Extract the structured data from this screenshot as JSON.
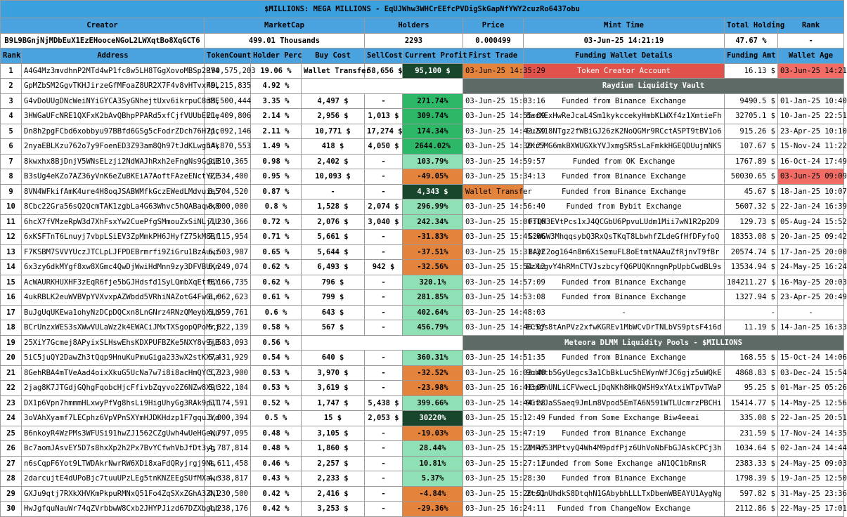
{
  "title": "$MILLIONS: MEGA MILLIONS - EqUJWhw3WHCrEEfcPVDigSkGapNfYWY2cuzRo6437obu",
  "summary_headers": [
    "Creator",
    "MarketCap",
    "Holders",
    "Price",
    "Mint Time",
    "Total Holding",
    "Rank"
  ],
  "summary_values": {
    "creator": "B9L9BGnjNjMDbEuX1EzEHooceNGoL2LWXqtBo8XqGCT6",
    "marketcap": "499.01 Thousands",
    "holders": "2293",
    "price": "0.000499",
    "mint_time": "03-Jun-25 14:21:19",
    "total_holding": "47.67 %",
    "rank": "-"
  },
  "columns": [
    "Rank",
    "Address",
    "TokenCount",
    "Holder Perc",
    "Buy Cost",
    "SellCost",
    "Current Profit",
    "First Trade",
    "Funding Wallet Details",
    "Funding Amt",
    "Wallet Age"
  ],
  "rows": [
    {
      "rank": "1",
      "addr": "A4G4Mz3mvdhnP2MTd4wP1fc8w5LH8TGgXovoMBSp2PY4",
      "tc": "190,575,203",
      "hp": "19.06 %",
      "buy": "Wallet Transfer",
      "sell": "58,656 $",
      "profit": "95,100 $",
      "pc": "dg",
      "ft": "03-Jun-25 14:35:29",
      "ftc": "or",
      "fund": "Token Creator Account",
      "fc": "red",
      "amt": "16.13 $",
      "age": "03-Jun-25 14:21",
      "agec": "lred"
    },
    {
      "rank": "2",
      "addr": "GpMZbSM2GgvTKHJirzeGfMFoaZ8UR2X7F4v8vHTvxFbL",
      "tc": "49,215,835",
      "hp": "4.92 %",
      "span": "Raydium Liquidity Vault"
    },
    {
      "rank": "3",
      "addr": "G4vDoUUgDNcWeiNYiGYCA3SyGNhejtUxv6ikrpuC8nME",
      "tc": "33,500,444",
      "hp": "3.35 %",
      "buy": "4,497 $",
      "sell": "-",
      "profit": "271.74%",
      "pc": "mg",
      "ft": "03-Jun-25 15:03:16",
      "ftc": "",
      "fund": "Funded from Binance Exchange",
      "fc": "",
      "amt": "9490.5 $",
      "age": "01-Jan-25 10:40",
      "agec": ""
    },
    {
      "rank": "4",
      "addr": "3HWGaUFcNRE1QXFxK2bAvQBhpPPARd5xfCjfVUUbEELe",
      "tc": "21,409,806",
      "hp": "2.14 %",
      "buy": "2,956 $",
      "sell": "1,013 $",
      "profit": "309.74%",
      "pc": "mg",
      "ft": "03-Jun-25 14:55:09",
      "ftc": "",
      "fund": "8acXExHwReJcaL4Sm1kykccekyHmbKLWXf4z1XmtieFh",
      "fc": "",
      "amt": "32705.1 $",
      "age": "10-Jan-25 22:51",
      "agec": ""
    },
    {
      "rank": "5",
      "addr": "Dn8h2pgFCbd6xobbyu97BBfd6GSg5cFodrZDch76H7pc",
      "tc": "21,092,146",
      "hp": "2.11 %",
      "buy": "10,771 $",
      "sell": "17,274 $",
      "profit": "174.34%",
      "pc": "mg",
      "ft": "03-Jun-25 14:42:59",
      "ftc": "",
      "fund": "Fu2X18NTgz2fWBiGJ26zK2NoQGMr9RCctASPT9tBV1o6",
      "fc": "",
      "amt": "915.26 $",
      "age": "23-Apr-25 10:10",
      "agec": ""
    },
    {
      "rank": "6",
      "addr": "2nyaEBLKzu762o7y9FoenED3Z93am8Qh97tJdKLwgbAk",
      "tc": "14,870,553",
      "hp": "1.49 %",
      "buy": "418 $",
      "sell": "4,050 $",
      "profit": "2644.02%",
      "pc": "mg",
      "ft": "03-Jun-25 14:30:27",
      "ftc": "",
      "fund": "2Kr5MG6mkBXWUGXkYVJxmgSR5sLaFmkkHGEQDUujmNKS",
      "fc": "",
      "amt": "107.67 $",
      "age": "15-Nov-24 11:22",
      "agec": ""
    },
    {
      "rank": "7",
      "addr": "8kwxhx8BjDnjV5WNsELzji2NdWAJhRxh2eFngNs9GgdE",
      "tc": "9,810,365",
      "hp": "0.98 %",
      "buy": "2,402 $",
      "sell": "-",
      "profit": "103.79%",
      "pc": "lg",
      "ft": "03-Jun-25 14:59:57",
      "ftc": "",
      "fund": "Funded from OK Exchange",
      "fc": "",
      "amt": "1767.89 $",
      "age": "16-Oct-24 17:49",
      "agec": ""
    },
    {
      "rank": "8",
      "addr": "B3sUg4eKZo7AZ36yVnK6eZuBKEiA7AoftFAzeENctYZE",
      "tc": "9,534,400",
      "hp": "0.95 %",
      "buy": "10,093 $",
      "sell": "-",
      "profit": "-49.05%",
      "pc": "or",
      "ft": "03-Jun-25 15:34:13",
      "ftc": "",
      "fund": "Funded from Binance Exchange",
      "fc": "",
      "amt": "50030.65 $",
      "age": "03-Jun-25 09:09",
      "agec": "lred"
    },
    {
      "rank": "9",
      "addr": "8VN4WFkifAmK4ure4H8oqJSABWMfkGczEWedLMdvuie5",
      "tc": "8,704,520",
      "hp": "0.87 %",
      "buy": "-",
      "sell": "-",
      "profit": "4,343 $",
      "pc": "dg",
      "ft": "Wallet Transfer",
      "ftc": "or",
      "fund": "Funded from Binance Exchange",
      "fc": "",
      "amt": "45.67 $",
      "age": "18-Jan-25 10:07",
      "agec": ""
    },
    {
      "rank": "10",
      "addr": "8Cbc22Gra56sQ2QcmTAK1zgbLa4G63Whvc5hQABaqwx8",
      "tc": "8,000,000",
      "hp": "0.8 %",
      "buy": "1,528 $",
      "sell": "2,074 $",
      "profit": "296.99%",
      "pc": "lg",
      "ft": "03-Jun-25 14:56:40",
      "ftc": "",
      "fund": "Funded from Bybit Exchange",
      "fc": "",
      "amt": "5607.32 $",
      "age": "22-Jan-24 16:39",
      "agec": ""
    },
    {
      "rank": "11",
      "addr": "6hcX7fVMzeRpW3d7XhFsxYw2CuePfgSMmouZxSiNLj1U",
      "tc": "7,230,366",
      "hp": "0.72 %",
      "buy": "2,076 $",
      "sell": "3,040 $",
      "profit": "242.34%",
      "pc": "lg",
      "ft": "03-Jun-25 15:00:16",
      "ftc": "",
      "fund": "FTQM3EVtPcs1xJ4QCGbU6PpvuLUdm1Mii7wN1R2p2D9",
      "fc": "",
      "amt": "129.73 $",
      "age": "05-Aug-24 15:52",
      "agec": ""
    },
    {
      "rank": "12",
      "addr": "6xKSFTnT6Lnuyj7vbpLSiEV3ZpMmkPH6JHyfZ75kM8Bf",
      "tc": "7,115,954",
      "hp": "0.71 %",
      "buy": "5,661 $",
      "sell": "-",
      "profit": "-31.83%",
      "pc": "or",
      "ft": "03-Jun-25 15:45:06",
      "ftc": "",
      "fund": "G2WGW3MhqqsybQ3RxQsTKqT8LbwhfZLdeGfHfDFyfoQ",
      "fc": "",
      "amt": "18353.08 $",
      "age": "20-Jan-25 09:42",
      "agec": ""
    },
    {
      "rank": "13",
      "addr": "F7KSBM7SVVYUczJTCLpLJFPDEBrmrfi9ZiGru1BzAuwi",
      "tc": "6,503,987",
      "hp": "0.65 %",
      "buy": "5,644 $",
      "sell": "-",
      "profit": "-37.51%",
      "pc": "or",
      "ft": "03-Jun-25 15:31:22",
      "ftc": "",
      "fund": "BAyC2og164n8m6XiSemuFL8oEtmtNAAuZfRjnvT9fBr",
      "fc": "",
      "amt": "20574.74 $",
      "age": "17-Jan-25 20:00",
      "agec": ""
    },
    {
      "rank": "14",
      "addr": "6x3zy6dkMYgf8xw8XGmc4QwDjWwiHdMnn9zy3DFVBUXn",
      "tc": "6,249,074",
      "hp": "0.62 %",
      "buy": "6,493 $",
      "sell": "942 $",
      "profit": "-32.56%",
      "pc": "or",
      "ft": "03-Jun-25 15:54:12",
      "ftc": "",
      "fund": "EzXrgvY4hRMnCTVJszbcyfQ6PUQKnngnPpUpbCwdBL9s",
      "fc": "",
      "amt": "13534.94 $",
      "age": "24-May-25 16:24",
      "agec": ""
    },
    {
      "rank": "15",
      "addr": "AcWAURKHUXHF3zEqR6fje5bGJHdsfd1SyLQmbXqEtf8Y",
      "tc": "6,166,735",
      "hp": "0.62 %",
      "buy": "796 $",
      "sell": "-",
      "profit": "320.1%",
      "pc": "lg",
      "ft": "03-Jun-25 14:57:09",
      "ftc": "",
      "fund": "Funded from Binance Exchange",
      "fc": "",
      "amt": "104211.27 $",
      "age": "16-May-25 20:03",
      "agec": ""
    },
    {
      "rank": "16",
      "addr": "4ukRBLK2euWVBVpYVXvxpAZWbdd5VRhiNAZotG4FwGLr",
      "tc": "6,062,623",
      "hp": "0.61 %",
      "buy": "799 $",
      "sell": "-",
      "profit": "281.85%",
      "pc": "lg",
      "ft": "03-Jun-25 14:53:08",
      "ftc": "",
      "fund": "Funded from Binance Exchange",
      "fc": "",
      "amt": "1327.94 $",
      "age": "23-Apr-25 20:49",
      "agec": ""
    },
    {
      "rank": "17",
      "addr": "BuJgUqUKEwa1ohyNzDCpDQCxn8LnGNrz4RNzQMeybXib",
      "tc": "5,959,761",
      "hp": "0.6 %",
      "buy": "643 $",
      "sell": "-",
      "profit": "402.64%",
      "pc": "lg",
      "ft": "03-Jun-25 14:48:03",
      "ftc": "",
      "fund": "-",
      "fc": "",
      "amt": "-",
      "age": "-",
      "agec": ""
    },
    {
      "rank": "18",
      "addr": "BCrUnzxWES3sXWwVULaWz2k4EWACiJMxTXSgopQPoMrj",
      "tc": "5,822,139",
      "hp": "0.58 %",
      "buy": "567 $",
      "sell": "-",
      "profit": "456.79%",
      "pc": "lg",
      "ft": "03-Jun-25 14:46:07",
      "ftc": "",
      "fund": "EC5gs8tAnPVz2xfwKGREv1MbWCvDrTNLbVS9ptsF4i6d",
      "fc": "",
      "amt": "11.19 $",
      "age": "14-Jan-25 16:33",
      "agec": ""
    },
    {
      "rank": "19",
      "addr": "25XiY7Gcmej8APyixSLHswEhsKDXPUFBZKe5NXY8v9jB",
      "tc": "5,583,093",
      "hp": "0.56 %",
      "span": "Meteora DLMM Liquidity Pools - $MILLIONS"
    },
    {
      "rank": "20",
      "addr": "5iC5juQY2DawZh3tQqp9HnuKuPmuGiga233wX2stKX7a",
      "tc": "5,431,929",
      "hp": "0.54 %",
      "buy": "640 $",
      "sell": "-",
      "profit": "360.31%",
      "pc": "lg",
      "ft": "03-Jun-25 14:51:35",
      "ftc": "",
      "fund": "Funded from Binance Exchange",
      "fc": "",
      "amt": "168.55 $",
      "age": "15-Oct-24 14:06",
      "agec": ""
    },
    {
      "rank": "21",
      "addr": "8GehRBA4mTVeAad4oixXkuG5UcNa7w7i8i8acHmQYCC7",
      "tc": "5,323,900",
      "hp": "0.53 %",
      "buy": "3,970 $",
      "sell": "-",
      "profit": "-32.52%",
      "pc": "or",
      "ft": "03-Jun-25 16:03:48",
      "ftc": "",
      "fund": "9obNtb5GyUegcs3a1CbBkLuc5hEWynWfJC6gjz5uWQkE",
      "fc": "",
      "amt": "4868.83 $",
      "age": "03-Dec-24 15:54",
      "agec": ""
    },
    {
      "rank": "22",
      "addr": "2jag8K7JTGdjGQhgFqobcHjcFfivbZqyvo2Z6NZw8X9t",
      "tc": "5,322,104",
      "hp": "0.53 %",
      "buy": "3,619 $",
      "sell": "-",
      "profit": "-23.98%",
      "pc": "or",
      "ft": "03-Jun-25 16:43:05",
      "ftc": "",
      "fund": "H3pPhUNLiCFVwecLjDqNKh8HkQWSH9xYAtxiWTpvTWaP",
      "fc": "",
      "amt": "95.25 $",
      "age": "01-Mar-25 05:26",
      "agec": ""
    },
    {
      "rank": "23",
      "addr": "DX1p6Vpn7hmmmHLxwyPfVg8hsLi9HigUhyGg3RAk9pJT",
      "tc": "5,174,591",
      "hp": "0.52 %",
      "buy": "1,747 $",
      "sell": "5,438 $",
      "profit": "399.66%",
      "pc": "lg",
      "ft": "03-Jun-25 14:44:28",
      "ftc": "",
      "fund": "9GfvJaSSaeq9JmLm8Vpod5EmTA6N591WTLUcmrzPBCHi",
      "fc": "",
      "amt": "15414.77 $",
      "age": "14-May-25 12:56",
      "agec": ""
    },
    {
      "rank": "24",
      "addr": "3oVAhXyamf7LECphz6VpVPnSXYmHJDKHdzp1F7gquJYd",
      "tc": "5,000,394",
      "hp": "0.5 %",
      "buy": "15 $",
      "sell": "2,053 $",
      "profit": "30220%",
      "pc": "dg",
      "ft": "03-Jun-25 15:12:49",
      "ftc": "",
      "fund": "Funded from Some Exchange Biw4eeai",
      "fc": "",
      "amt": "335.08 $",
      "age": "22-Jan-25 20:51",
      "agec": ""
    },
    {
      "rank": "25",
      "addr": "B6nkoyR4WzPMs3WFUSi91hwZJ1562CZgUwh4wUeHGeWu",
      "tc": "4,797,095",
      "hp": "0.48 %",
      "buy": "3,105 $",
      "sell": "-",
      "profit": "-19.03%",
      "pc": "or",
      "ft": "03-Jun-25 15:47:19",
      "ftc": "",
      "fund": "Funded from Binance Exchange",
      "fc": "",
      "amt": "231.59 $",
      "age": "17-Nov-24 14:35",
      "agec": ""
    },
    {
      "rank": "26",
      "addr": "Bc7aomJAsvEY5D7s8hxXp2h2Px7BvYCfwhVbJfDt3yg",
      "tc": "4,787,814",
      "hp": "0.48 %",
      "buy": "1,860 $",
      "sell": "-",
      "profit": "28.44%",
      "pc": "lg",
      "ft": "03-Jun-25 15:21:47",
      "ftc": "",
      "fund": "2MFoS3MPtvyQ4Wh4M9pdfPjz6UhVoNbFbGJAskCPCj3h",
      "fc": "",
      "amt": "1034.64 $",
      "age": "02-Jan-24 14:44",
      "agec": ""
    },
    {
      "rank": "27",
      "addr": "n6sCqpF6Yot9LTWDAkrNwrRW6XDi8xaFdQRyjrgj9Ns",
      "tc": "4,611,458",
      "hp": "0.46 %",
      "buy": "2,257 $",
      "sell": "-",
      "profit": "10.81%",
      "pc": "lg",
      "ft": "03-Jun-25 15:27:12",
      "ftc": "",
      "fund": "Funded from Some Exchange aN1QC1bRmsR",
      "fc": "",
      "amt": "2383.33 $",
      "age": "24-May-25 09:03",
      "agec": ""
    },
    {
      "rank": "28",
      "addr": "2darcujtE4dUPoBjc7tuuUPzLEg5tnKNZEEgSUfMXawr",
      "tc": "4,338,817",
      "hp": "0.43 %",
      "buy": "2,233 $",
      "sell": "-",
      "profit": "5.37%",
      "pc": "lg",
      "ft": "03-Jun-25 15:28:30",
      "ftc": "",
      "fund": "Funded from Binance Exchange",
      "fc": "",
      "amt": "1798.39 $",
      "age": "19-Jan-25 12:50",
      "agec": ""
    },
    {
      "rank": "29",
      "addr": "GXJu9qtj7RXkXHVKmPkpuRMNxQ51Fo4ZqSXxZGhA3ZN1",
      "tc": "4,230,500",
      "hp": "0.42 %",
      "buy": "2,416 $",
      "sell": "-",
      "profit": "-4.84%",
      "pc": "or",
      "ft": "03-Jun-25 15:20:51",
      "ftc": "",
      "fund": "2tsQnUhdkS8DtqhN1GAbybhLLLTxDbenWBEAYU1AygNg",
      "fc": "",
      "amt": "597.82 $",
      "age": "31-May-25 23:36",
      "agec": ""
    },
    {
      "rank": "30",
      "addr": "HwJgfquNauWr74qZVrbbwW8Cxb2JHYPJizd67DZXbgob",
      "tc": "4,238,176",
      "hp": "0.42 %",
      "buy": "3,253 $",
      "sell": "-",
      "profit": "-29.36%",
      "pc": "or",
      "ft": "03-Jun-25 16:24:11",
      "ftc": "",
      "fund": "Funded from ChangeNow Exchange",
      "fc": "",
      "amt": "2112.86 $",
      "age": "22-May-25 17:01",
      "agec": ""
    }
  ]
}
